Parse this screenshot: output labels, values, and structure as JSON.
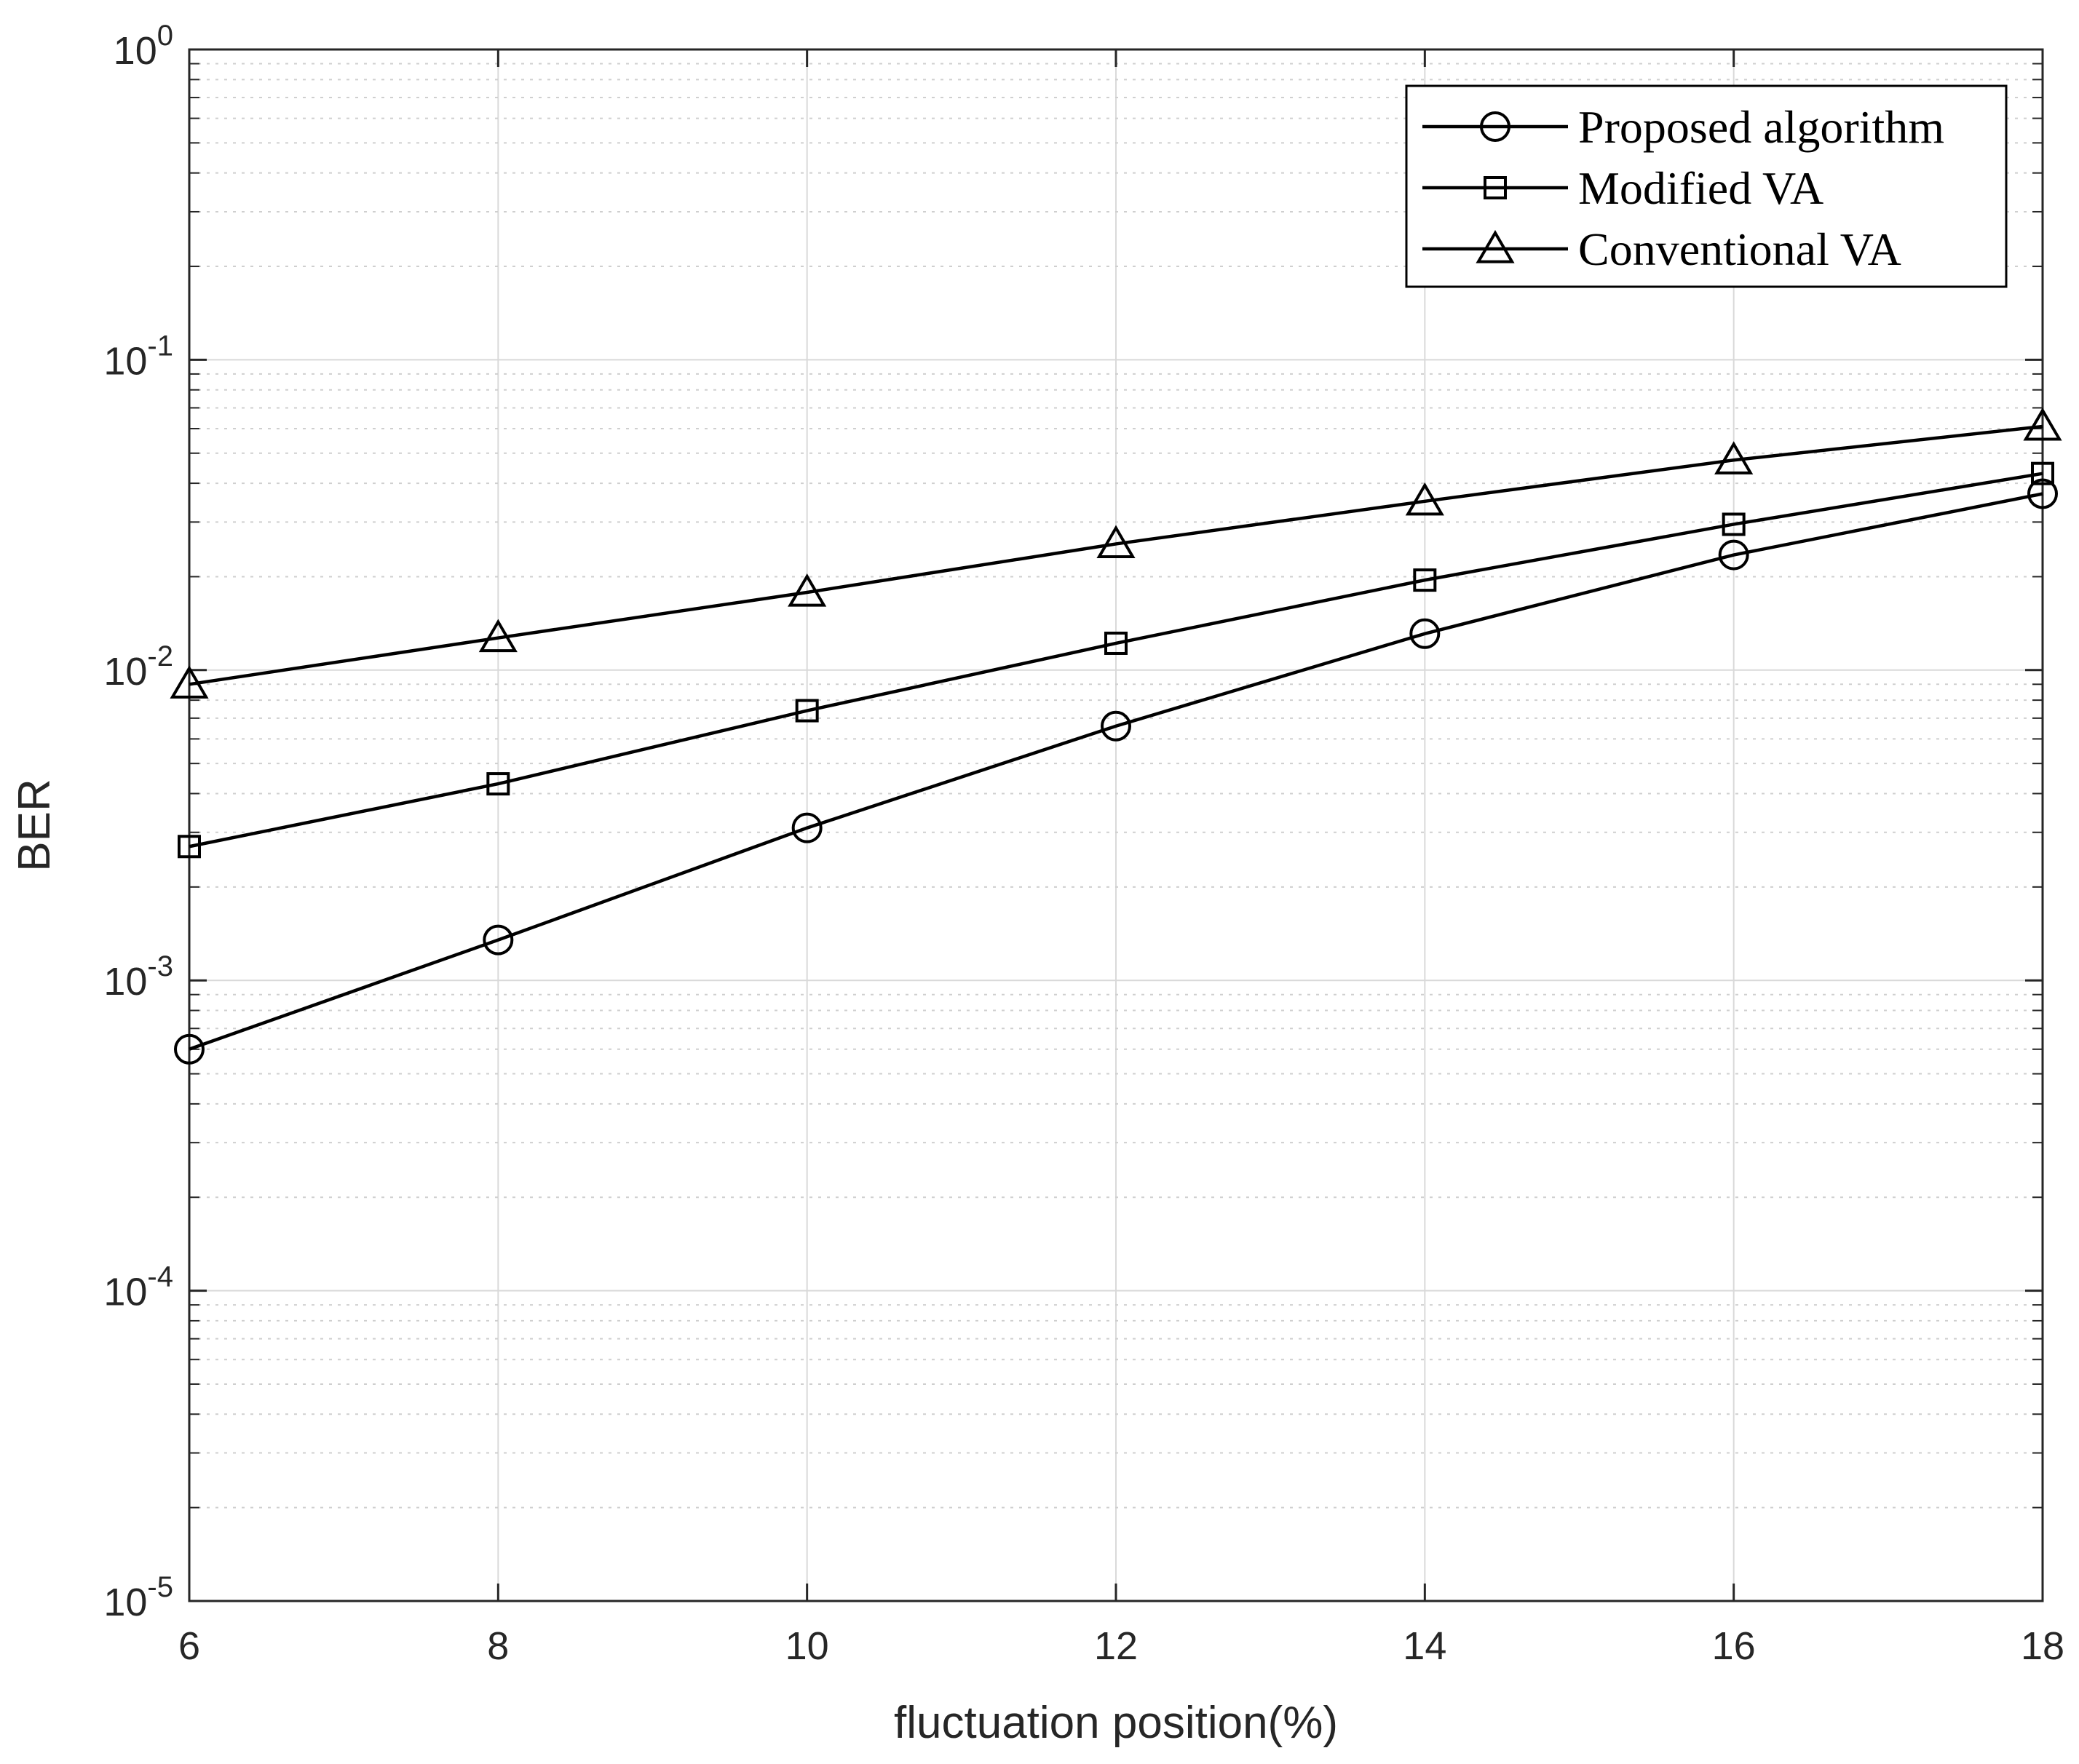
{
  "chart_data": {
    "type": "line",
    "title": "",
    "xlabel": "fluctuation position(%)",
    "ylabel": "BER",
    "x": [
      6,
      8,
      10,
      12,
      14,
      16,
      18
    ],
    "xlim": [
      6,
      18
    ],
    "xticks": [
      "6",
      "8",
      "10",
      "12",
      "14",
      "16",
      "18"
    ],
    "yscale": "log",
    "ylim": [
      1e-05,
      1
    ],
    "yticks": [
      {
        "base": "10",
        "exp": "-5"
      },
      {
        "base": "10",
        "exp": "-4"
      },
      {
        "base": "10",
        "exp": "-3"
      },
      {
        "base": "10",
        "exp": "-2"
      },
      {
        "base": "10",
        "exp": "-1"
      },
      {
        "base": "10",
        "exp": "0"
      }
    ],
    "grid": true,
    "legend_position": "top-right",
    "series": [
      {
        "name": "Proposed algorithm",
        "marker": "circle",
        "color": "#000000",
        "values": [
          0.0006,
          0.00135,
          0.0031,
          0.0066,
          0.0131,
          0.0235,
          0.037
        ]
      },
      {
        "name": "Modified VA",
        "marker": "square",
        "color": "#000000",
        "values": [
          0.0027,
          0.0043,
          0.0074,
          0.0122,
          0.0195,
          0.0295,
          0.043
        ]
      },
      {
        "name": "Conventional VA",
        "marker": "triangle",
        "color": "#000000",
        "values": [
          0.009,
          0.0127,
          0.0178,
          0.0255,
          0.035,
          0.0475,
          0.061
        ]
      }
    ]
  }
}
